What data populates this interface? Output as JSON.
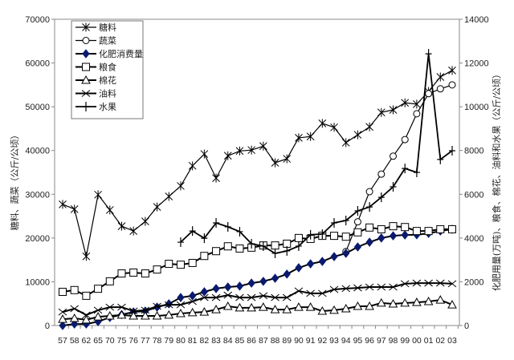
{
  "chart_data": {
    "type": "line",
    "categories": [
      "57",
      "58",
      "62",
      "65",
      "70",
      "75",
      "76",
      "77",
      "78",
      "79",
      "80",
      "81",
      "82",
      "83",
      "84",
      "85",
      "86",
      "87",
      "88",
      "89",
      "90",
      "91",
      "92",
      "93",
      "94",
      "95",
      "96",
      "97",
      "98",
      "99",
      "00",
      "01",
      "02",
      "03"
    ],
    "ylabel": "糖料、蔬菜（公斤/公顷）",
    "ylabel_right": "化肥用量(万吨)、粮食、棉花、油料和水果（公斤/公顷）",
    "ylim": [
      0,
      70000
    ],
    "ylim_right": [
      0,
      14000
    ],
    "yticks": [
      0,
      10000,
      20000,
      30000,
      40000,
      50000,
      60000,
      70000
    ],
    "yticks_right": [
      0,
      2000,
      4000,
      6000,
      8000,
      10000,
      12000,
      14000
    ],
    "legend_position": "top-left",
    "grid": false,
    "series": [
      {
        "name": "糖料",
        "axis": "left",
        "marker": "asterisk",
        "values": [
          27700,
          26600,
          15800,
          29900,
          26400,
          22700,
          21600,
          23800,
          27100,
          29500,
          31900,
          36500,
          39200,
          33700,
          38800,
          39900,
          40100,
          41000,
          37200,
          38100,
          42900,
          43200,
          46200,
          45300,
          41800,
          43600,
          45400,
          48700,
          49300,
          50900,
          50600,
          53500,
          56800,
          58300
        ]
      },
      {
        "name": "蔬菜",
        "axis": "left",
        "marker": "circle",
        "values": [
          null,
          null,
          null,
          null,
          null,
          null,
          null,
          null,
          null,
          null,
          null,
          null,
          null,
          null,
          null,
          null,
          null,
          null,
          null,
          null,
          null,
          null,
          null,
          null,
          16900,
          23700,
          30600,
          34600,
          38700,
          42500,
          48400,
          53000,
          54100,
          55000
        ]
      },
      {
        "name": "化肥消费量",
        "axis": "right",
        "marker": "diamond",
        "values": [
          0,
          70,
          70,
          180,
          370,
          500,
          620,
          660,
          840,
          990,
          1280,
          1360,
          1540,
          1690,
          1760,
          1800,
          1940,
          2020,
          2160,
          2350,
          2640,
          2820,
          2930,
          3150,
          3300,
          3590,
          3810,
          4000,
          4100,
          4140,
          4150,
          4210,
          4320,
          4400
        ]
      },
      {
        "name": "粮食",
        "axis": "right",
        "marker": "square",
        "values": [
          1540,
          1620,
          1360,
          1680,
          2020,
          2380,
          2420,
          2380,
          2560,
          2820,
          2780,
          2860,
          3180,
          3400,
          3620,
          3520,
          3560,
          3660,
          3660,
          3740,
          4000,
          3960,
          4100,
          4100,
          4060,
          4260,
          4480,
          4400,
          4540,
          4500,
          4320,
          4320,
          4400,
          4400
        ]
      },
      {
        "name": "棉花",
        "axis": "right",
        "marker": "triangle",
        "values": [
          290,
          330,
          260,
          400,
          440,
          480,
          440,
          440,
          440,
          480,
          550,
          590,
          620,
          730,
          880,
          810,
          810,
          840,
          730,
          730,
          840,
          840,
          660,
          700,
          770,
          880,
          880,
          1030,
          990,
          1030,
          1060,
          1100,
          1170,
          950
        ]
      },
      {
        "name": "油料",
        "axis": "right",
        "marker": "x",
        "values": [
          620,
          770,
          480,
          700,
          840,
          840,
          660,
          700,
          880,
          950,
          950,
          1100,
          1280,
          1280,
          1390,
          1280,
          1280,
          1360,
          1280,
          1280,
          1580,
          1470,
          1470,
          1650,
          1690,
          1720,
          1760,
          1760,
          1760,
          1910,
          1940,
          1940,
          1940,
          1910
        ]
      },
      {
        "name": "水果",
        "axis": "right",
        "marker": "plus",
        "values": [
          null,
          null,
          null,
          null,
          null,
          null,
          null,
          null,
          null,
          null,
          3810,
          4320,
          3990,
          4690,
          4510,
          4290,
          3740,
          3630,
          3300,
          3410,
          3630,
          4150,
          4180,
          4690,
          4800,
          5240,
          5420,
          5860,
          6340,
          7180,
          7000,
          12420,
          7590,
          7990
        ]
      }
    ],
    "colors": {
      "line": "#000000",
      "fertilizer_marker": "#0a1a6e"
    }
  }
}
